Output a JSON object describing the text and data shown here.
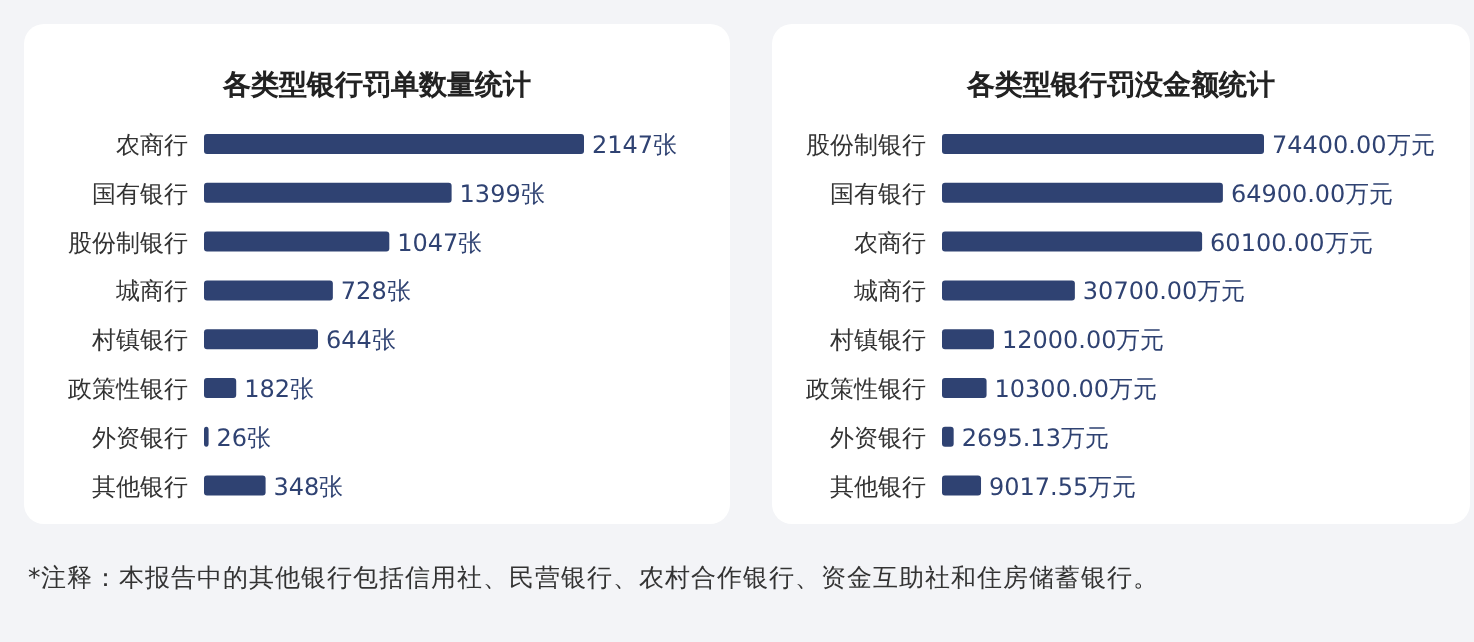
{
  "chart_data": [
    {
      "type": "bar",
      "orientation": "horizontal",
      "title": "各类型银行罚单数量统计",
      "categories": [
        "农商行",
        "国有银行",
        "股份制银行",
        "城商行",
        "村镇银行",
        "政策性银行",
        "外资银行",
        "其他银行"
      ],
      "values": [
        2147,
        1399,
        1047,
        728,
        644,
        182,
        26,
        348
      ],
      "color": "#2f4272",
      "value_labels": [
        "2147张",
        "1399张",
        "1047张",
        "728张",
        "644张",
        "182张",
        "26张",
        "348张"
      ],
      "annotations": [
        "*注释：本报告中的其他银行包括信用社、民营银行、农村合作银行、资金互助社和住房储蓄银行。"
      ]
    },
    {
      "type": "bar",
      "orientation": "horizontal",
      "title": "各类型银行罚没金额统计",
      "categories": [
        "股份制银行",
        "国有银行",
        "农商行",
        "城商行",
        "村镇银行",
        "政策性银行",
        "外资银行",
        "其他银行"
      ],
      "values": [
        74400,
        64900,
        60100,
        30700,
        12000,
        10300,
        2695.13,
        9017.55
      ],
      "color": "#2f4272",
      "value_labels": [
        "74400.00万元",
        "64900.00万元",
        "60100.00万元",
        "30700.00万元",
        "12000.00万元",
        "10300.00万元",
        "2695.13万元",
        "9017.55万元"
      ]
    }
  ]
}
